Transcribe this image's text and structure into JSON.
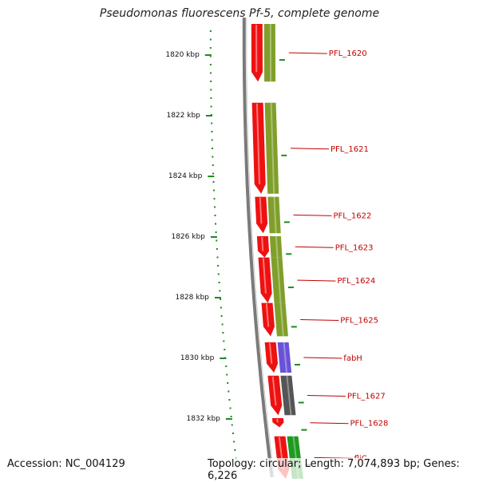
{
  "title": "Pseudomonas fluorescens Pf-5, complete genome",
  "accession_text": "Accession: NC_004129",
  "topology_text": "Topology: circular; Length: 7,074,893 bp; Genes: 6,226",
  "colors": {
    "backbone": "#7a7a7a",
    "tick": "#1f8a1f",
    "forward_gene": "#ee1111",
    "cds_feature": "#7f9f2a",
    "blue_feature": "#6a52d8",
    "gray_feature": "#555555",
    "green_feature": "#1f9a1f",
    "label": "#c00000"
  },
  "scale": {
    "unit": "kbp",
    "ticks": [
      {
        "kbp": 1820,
        "label": "1820 kbp"
      },
      {
        "kbp": 1822,
        "label": "1822 kbp"
      },
      {
        "kbp": 1824,
        "label": "1824 kbp"
      },
      {
        "kbp": 1826,
        "label": "1826 kbp"
      },
      {
        "kbp": 1828,
        "label": "1828 kbp"
      },
      {
        "kbp": 1830,
        "label": "1830 kbp"
      },
      {
        "kbp": 1832,
        "label": "1832 kbp"
      }
    ]
  },
  "genes": [
    {
      "name": "PFL_1620",
      "start": 1819.0,
      "end": 1820.9,
      "feature": "cds"
    },
    {
      "name": "PFL_1621",
      "start": 1821.6,
      "end": 1824.6,
      "feature": "cds"
    },
    {
      "name": "PFL_1622",
      "start": 1824.7,
      "end": 1825.9,
      "feature": "cds"
    },
    {
      "name": "PFL_1623",
      "start": 1826.0,
      "end": 1826.7,
      "feature": "cds"
    },
    {
      "name": "PFL_1624",
      "start": 1826.7,
      "end": 1828.2,
      "feature": "cds"
    },
    {
      "name": "PFL_1625",
      "start": 1828.2,
      "end": 1829.3,
      "feature": "cds"
    },
    {
      "name": "fabH",
      "start": 1829.5,
      "end": 1830.5,
      "feature": "blue"
    },
    {
      "name": "PFL_1627",
      "start": 1830.6,
      "end": 1831.9,
      "feature": "gray"
    },
    {
      "name": "PFL_1628",
      "start": 1832.0,
      "end": 1832.3,
      "feature": "none"
    },
    {
      "name": "fliC",
      "start": 1832.6,
      "end": 1834.0,
      "feature": "green"
    }
  ]
}
